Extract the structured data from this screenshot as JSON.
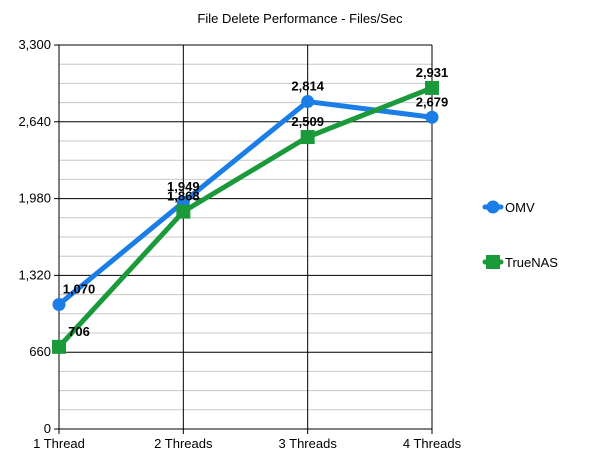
{
  "chart_data": {
    "type": "line",
    "title": "File Delete Performance - Files/Sec",
    "xlabel": "",
    "ylabel": "",
    "categories": [
      "1 Thread",
      "2 Threads",
      "3 Threads",
      "4 Threads"
    ],
    "ylim": [
      0,
      3300
    ],
    "yticks": [
      0,
      660,
      1320,
      1980,
      2640,
      3300
    ],
    "ytick_labels": [
      "0",
      "660",
      "1,320",
      "1,980",
      "2,640",
      "3,300"
    ],
    "grid": true,
    "legend_position": "right",
    "series": [
      {
        "name": "OMV",
        "values": [
          1070,
          1949,
          2814,
          2679
        ],
        "labels": [
          "1,070",
          "1,949",
          "2,814",
          "2,679"
        ],
        "color": "#1a7ee6",
        "marker": "circle"
      },
      {
        "name": "TrueNAS",
        "values": [
          706,
          1868,
          2509,
          2931
        ],
        "labels": [
          "706",
          "1,868",
          "2,509",
          "2,931"
        ],
        "color": "#1a9a3a",
        "marker": "square"
      }
    ]
  }
}
